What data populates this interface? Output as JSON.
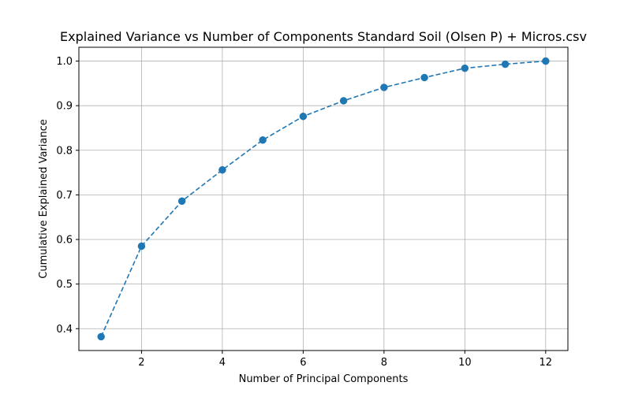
{
  "chart_data": {
    "type": "line",
    "title": "Explained Variance vs Number of Components Standard Soil (Olsen P) + Micros.csv",
    "xlabel": "Number of Principal Components",
    "ylabel": "Cumulative Explained Variance",
    "x": [
      1,
      2,
      3,
      4,
      5,
      6,
      7,
      8,
      9,
      10,
      11,
      12
    ],
    "series": [
      {
        "values": [
          0.382,
          0.585,
          0.686,
          0.756,
          0.823,
          0.876,
          0.911,
          0.941,
          0.963,
          0.984,
          0.993,
          1.0
        ],
        "color": "#1f77b4",
        "line_style": "dashed",
        "marker": "circle"
      }
    ],
    "xlim": [
      0.45,
      12.55
    ],
    "ylim": [
      0.351,
      1.031
    ],
    "xticks": [
      2,
      4,
      6,
      8,
      10,
      12
    ],
    "xtick_labels": [
      "2",
      "4",
      "6",
      "8",
      "10",
      "12"
    ],
    "yticks": [
      0.4,
      0.5,
      0.6,
      0.7,
      0.8,
      0.9,
      1.0
    ],
    "ytick_labels": [
      "0.4",
      "0.5",
      "0.6",
      "0.7",
      "0.8",
      "0.9",
      "1.0"
    ],
    "grid": true,
    "grid_color": "#b0b0b0"
  }
}
